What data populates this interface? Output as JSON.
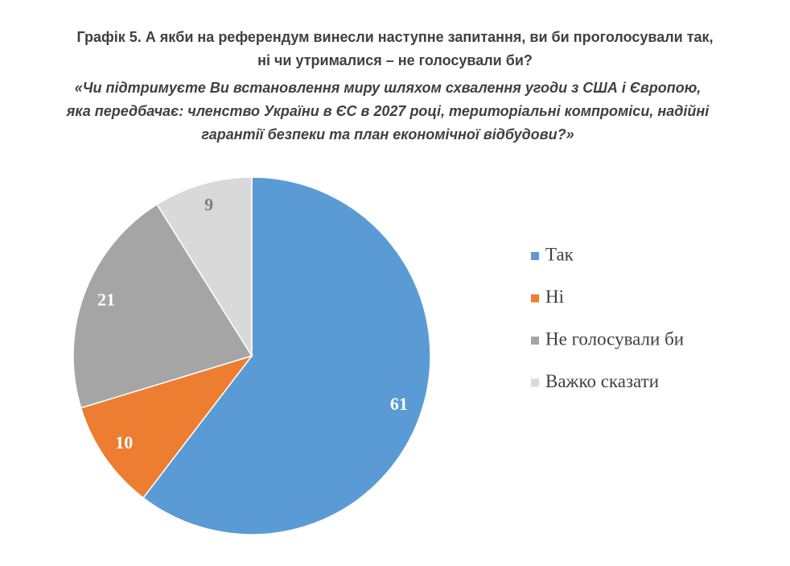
{
  "chart_data": {
    "type": "pie",
    "title": [
      "Графік 5. А якби на референдум винесли наступне запитання, ви би проголосували так,",
      "ні чи утрималися – не голосували би?"
    ],
    "subtitle": [
      "«Чи підтримуєте Ви встановлення миру шляхом схвалення угоди з США і Європою,",
      "яка передбачає: членство України в ЄС в 2027 році, територіальні компроміси, надійні",
      "гарантії безпеки та план економічної відбудови?»"
    ],
    "categories": [
      "Так",
      "Ні",
      "Не голосували би",
      "Важко сказати"
    ],
    "values": [
      61,
      10,
      21,
      9
    ],
    "colors": [
      "#5b9bd5",
      "#ed7d31",
      "#a5a5a5",
      "#d9d9d9"
    ],
    "legend": "right"
  }
}
